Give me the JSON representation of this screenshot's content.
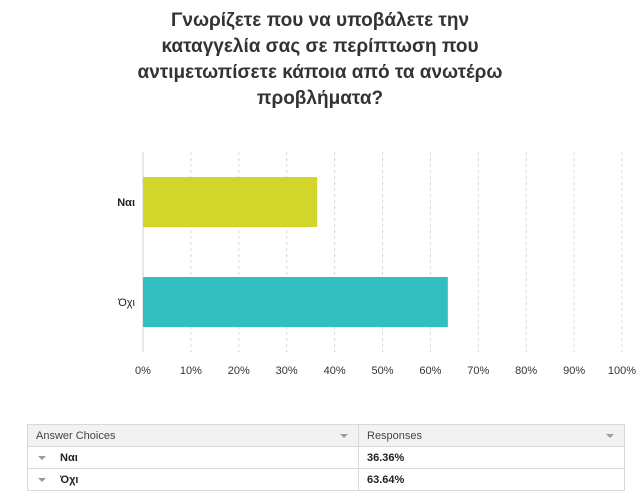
{
  "title_lines": [
    "Γνωρίζετε που να υποβάλετε την",
    "καταγγελία σας σε περίπτωση που",
    "αντιμετωπίσετε κάποια από τα ανωτέρω",
    "προβλήματα?"
  ],
  "chart_data": {
    "type": "bar",
    "orientation": "horizontal",
    "categories": [
      "Ναι",
      "Όχι"
    ],
    "values": [
      36.36,
      63.64
    ],
    "colors": [
      "#d2d52a",
      "#33bfbf"
    ],
    "xlim": [
      0,
      100
    ],
    "xticks": [
      "0%",
      "10%",
      "20%",
      "30%",
      "40%",
      "50%",
      "60%",
      "70%",
      "80%",
      "90%",
      "100%"
    ],
    "grid": true
  },
  "table": {
    "headers": [
      "Answer Choices",
      "Responses"
    ],
    "rows": [
      {
        "choice": "Ναι",
        "response": "36.36%"
      },
      {
        "choice": "Όχι",
        "response": "63.64%"
      }
    ]
  }
}
